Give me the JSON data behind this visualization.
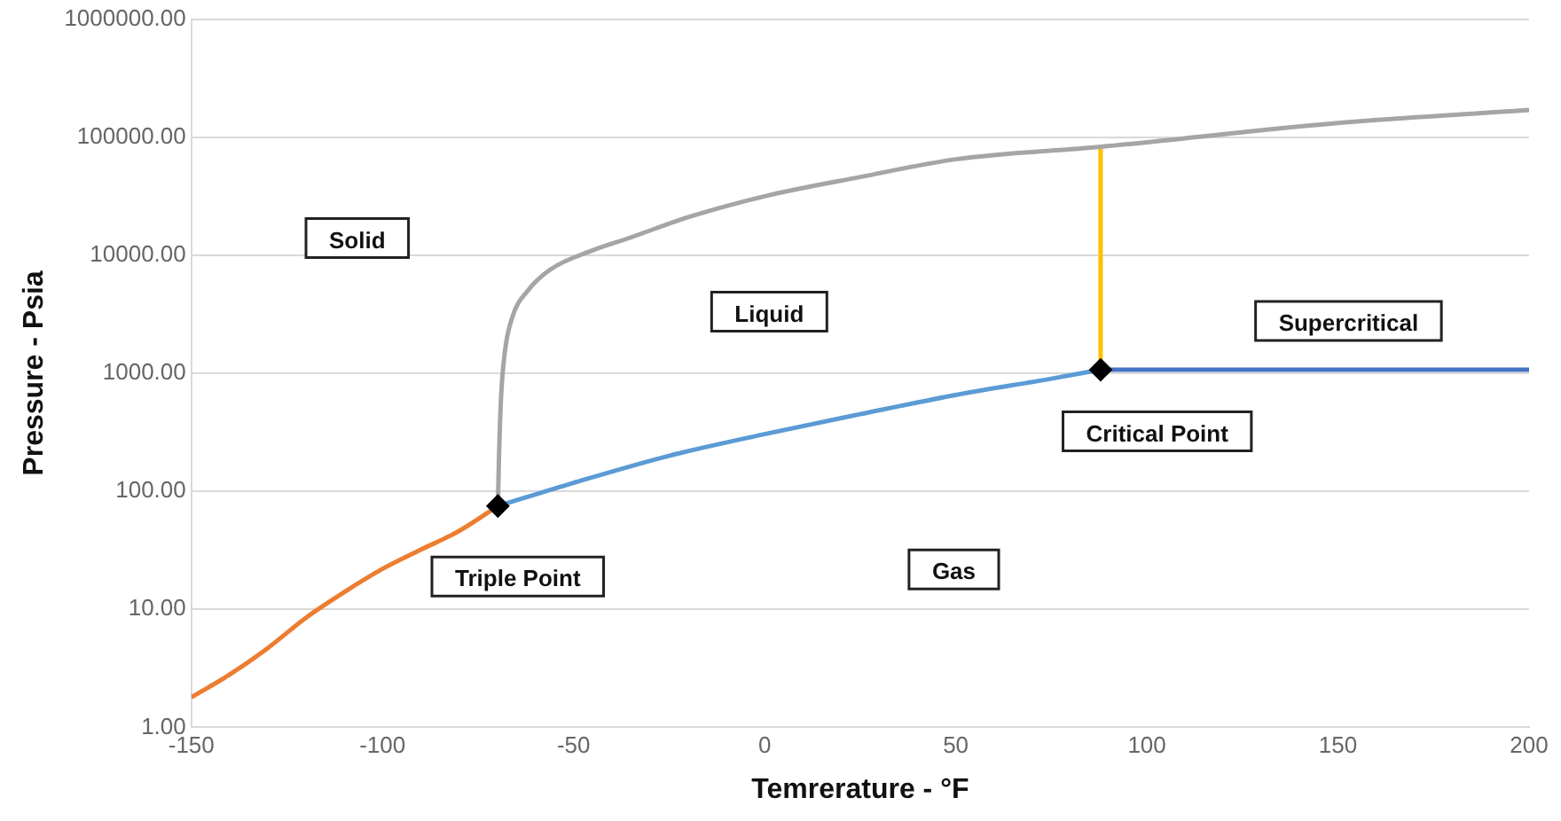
{
  "chart_data": {
    "type": "line",
    "xlabel": "Temrerature - °F",
    "ylabel": "Pressure - Psia",
    "log": "y",
    "grid": "y",
    "legend": false,
    "marker": "none",
    "xlim": [
      -150,
      200
    ],
    "xticks": [
      -150,
      -100,
      -50,
      0,
      50,
      100,
      150,
      200
    ],
    "ylim": [
      1,
      1000000
    ],
    "yticks": [
      {
        "value": 1,
        "label": "1.00"
      },
      {
        "value": 10,
        "label": "10.00"
      },
      {
        "value": 100,
        "label": "100.00"
      },
      {
        "value": 1000,
        "label": "1000.00"
      },
      {
        "value": 10000,
        "label": "10000.00"
      },
      {
        "value": 100000,
        "label": "100000.00"
      },
      {
        "value": 1000000,
        "label": "1000000.00"
      }
    ],
    "series": [
      {
        "color": "#ed7d31",
        "x": [
          -150,
          -140,
          -130,
          -120,
          -110,
          -100,
          -90,
          -80,
          -69.8
        ],
        "values": [
          1.8,
          2.8,
          4.7,
          8.5,
          14,
          22,
          32,
          46,
          75
        ]
      },
      {
        "color": "#5b9bd5",
        "x": [
          -69.8,
          -50,
          -25,
          0,
          25,
          50,
          75,
          87.9
        ],
        "values": [
          75,
          118,
          200,
          305,
          450,
          655,
          900,
          1070
        ]
      },
      {
        "color": "#4472c4",
        "x": [
          87.9,
          200
        ],
        "values": [
          1070,
          1070
        ]
      },
      {
        "color": "#a5a5a5",
        "x": [
          -69.8,
          -69.5,
          -69,
          -68,
          -66,
          -62,
          -56,
          -45,
          -36,
          -20,
          0,
          25,
          50,
          88,
          150,
          200
        ],
        "values": [
          75,
          200,
          600,
          1500,
          3000,
          5000,
          7600,
          11000,
          13800,
          21000,
          31600,
          46000,
          65000,
          83000,
          132000,
          170000
        ]
      },
      {
        "color": "#ffc000",
        "x": [
          87.9,
          87.9
        ],
        "values": [
          1070,
          83000
        ]
      },
      {
        "type": "scatter",
        "marker": "diamond",
        "color": "#000000",
        "x": [
          -69.8,
          87.9
        ],
        "values": [
          75,
          1070
        ]
      }
    ],
    "annotations": [
      "Solid",
      "Liquid",
      "Supercritical",
      "Critical Point",
      "Triple Point",
      "Gas"
    ]
  }
}
